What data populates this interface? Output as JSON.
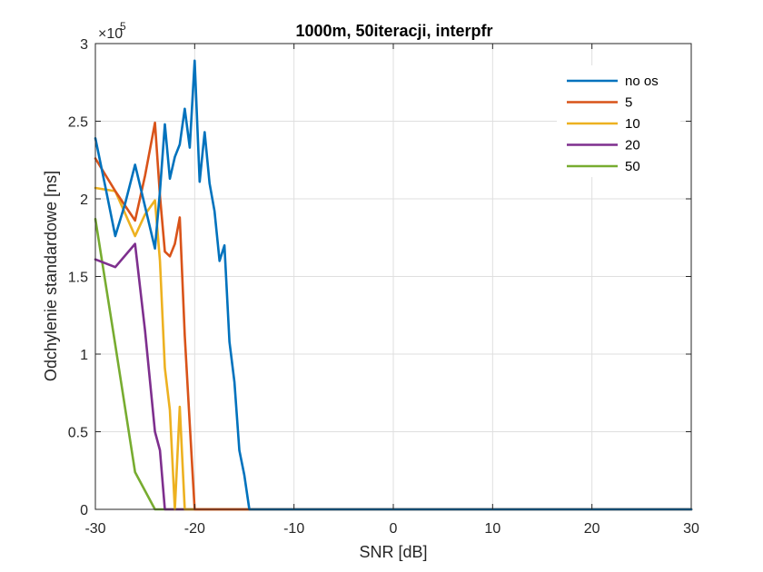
{
  "chart_data": {
    "type": "line",
    "title": "1000m, 50iteracji, interpfr",
    "xlabel": "SNR [dB]",
    "ylabel": "Odchylenie standardowe [ns]",
    "y_exponent_base": "×10",
    "y_exponent_power": "5",
    "xlim": [
      -30,
      30
    ],
    "ylim": [
      0,
      3
    ],
    "grid": true,
    "legend_position": "top-right",
    "x_ticks": [
      -30,
      -20,
      -10,
      0,
      10,
      20,
      30
    ],
    "x_tick_labels": [
      "-30",
      "-20",
      "-10",
      "0",
      "10",
      "20",
      "30"
    ],
    "y_ticks": [
      0,
      0.5,
      1,
      1.5,
      2,
      2.5,
      3
    ],
    "y_tick_labels": [
      "0",
      "0.5",
      "1",
      "1.5",
      "2",
      "2.5",
      "3"
    ],
    "series": [
      {
        "name": "no os",
        "color": "#0072BD",
        "x": [
          -30,
          -29,
          -28,
          -27,
          -26,
          -25,
          -24,
          -23.5,
          -23,
          -22.5,
          -22,
          -21.5,
          -21,
          -20.5,
          -20,
          -19.5,
          -19,
          -18.5,
          -18,
          -17.5,
          -17,
          -16.5,
          -16,
          -15.5,
          -15,
          -14.5,
          -14,
          -13,
          -10,
          0,
          10,
          20,
          30
        ],
        "y": [
          2.39,
          2.08,
          1.76,
          1.97,
          2.22,
          1.95,
          1.68,
          2.05,
          2.48,
          2.13,
          2.27,
          2.35,
          2.58,
          2.33,
          2.89,
          2.11,
          2.43,
          2.1,
          1.92,
          1.6,
          1.7,
          1.08,
          0.82,
          0.38,
          0.22,
          0.0,
          0,
          0,
          0,
          0,
          0,
          0,
          0
        ]
      },
      {
        "name": "5",
        "color": "#D95319",
        "x": [
          -30,
          -28,
          -26,
          -25,
          -24,
          -23.5,
          -23,
          -22.5,
          -22,
          -21.5,
          -21,
          -20.5,
          -20,
          -19.5,
          -19,
          -10,
          0,
          10,
          20,
          30
        ],
        "y": [
          2.26,
          2.05,
          1.86,
          2.15,
          2.49,
          2.02,
          1.66,
          1.63,
          1.71,
          1.88,
          1.12,
          0.55,
          0.0,
          0,
          0,
          0,
          0,
          0,
          0,
          0
        ]
      },
      {
        "name": "10",
        "color": "#EDB120",
        "x": [
          -30,
          -28,
          -26,
          -25,
          -24,
          -23.5,
          -23,
          -22.5,
          -22,
          -21.5,
          -21,
          -20.5,
          -20,
          -10,
          0,
          10,
          20,
          30
        ],
        "y": [
          2.07,
          2.05,
          1.76,
          1.9,
          1.99,
          1.6,
          0.91,
          0.64,
          0.0,
          0.66,
          0.0,
          0,
          0,
          0,
          0,
          0,
          0,
          0
        ]
      },
      {
        "name": "20",
        "color": "#7E2F8E",
        "x": [
          -30,
          -28,
          -26,
          -25,
          -24,
          -23.5,
          -23,
          -22.5,
          -22,
          -10,
          0,
          10,
          20,
          30
        ],
        "y": [
          1.61,
          1.56,
          1.71,
          1.15,
          0.5,
          0.38,
          0.0,
          0,
          0,
          0,
          0,
          0,
          0,
          0
        ]
      },
      {
        "name": "50",
        "color": "#77AC30",
        "x": [
          -30,
          -28,
          -26,
          -24,
          -20,
          -10,
          0,
          10,
          20,
          30
        ],
        "y": [
          1.87,
          1.06,
          0.24,
          0.0,
          0,
          0,
          0,
          0,
          0,
          0
        ]
      }
    ]
  }
}
